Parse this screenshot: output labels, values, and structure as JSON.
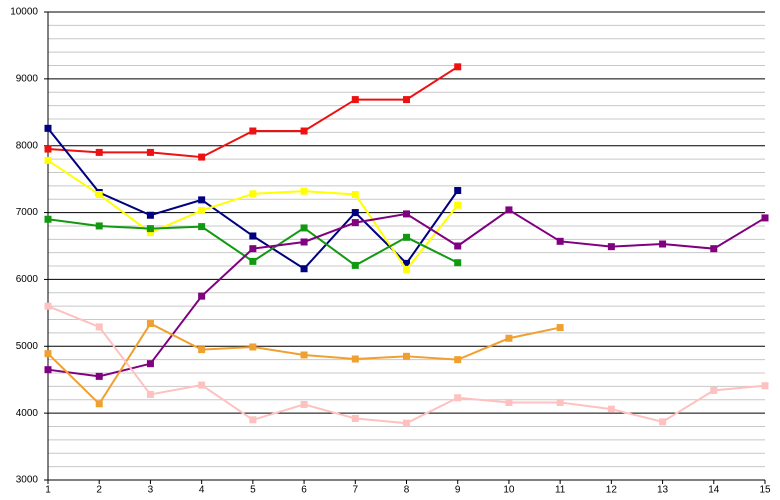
{
  "chart_data": {
    "type": "line",
    "x": [
      1,
      2,
      3,
      4,
      5,
      6,
      7,
      8,
      9,
      10,
      11,
      12,
      13,
      14,
      15
    ],
    "xlim": [
      1,
      15
    ],
    "xticks": [
      1,
      2,
      3,
      4,
      5,
      6,
      7,
      8,
      9,
      10,
      11,
      12,
      13,
      14,
      15
    ],
    "ylim": [
      3000,
      10000
    ],
    "yticks": [
      3000,
      4000,
      5000,
      6000,
      7000,
      8000,
      9000,
      10000
    ],
    "yminorticks": [
      3200,
      3400,
      3600,
      3800,
      4200,
      4400,
      4600,
      4800,
      5200,
      5400,
      5600,
      5800,
      6200,
      6400,
      6600,
      6800,
      7200,
      7400,
      7600,
      7800,
      8200,
      8400,
      8600,
      8800,
      9200,
      9400,
      9600,
      9800
    ],
    "grid": true,
    "series": [
      {
        "color": "#ee1111",
        "values": [
          7950,
          7900,
          7900,
          7830,
          8220,
          8220,
          8690,
          8690,
          9180,
          null,
          null,
          null,
          null,
          null,
          null
        ]
      },
      {
        "color": "#000080",
        "values": [
          8260,
          7300,
          6960,
          7190,
          6650,
          6160,
          7000,
          6240,
          7330,
          null,
          null,
          null,
          null,
          null,
          null
        ]
      },
      {
        "color": "#ffff00",
        "values": [
          7780,
          7270,
          6700,
          7030,
          7280,
          7320,
          7270,
          6150,
          7110,
          null,
          null,
          null,
          null,
          null,
          null
        ]
      },
      {
        "color": "#119911",
        "values": [
          6900,
          6800,
          6760,
          6790,
          6270,
          6770,
          6210,
          6630,
          6250,
          null,
          null,
          null,
          null,
          null,
          null
        ]
      },
      {
        "color": "#800080",
        "values": [
          4650,
          4550,
          4740,
          5750,
          6460,
          6560,
          6850,
          6980,
          6500,
          7040,
          6570,
          6490,
          6530,
          6460,
          6920
        ]
      },
      {
        "color": "#f0a030",
        "values": [
          4890,
          4140,
          5340,
          4950,
          4990,
          4870,
          4810,
          4850,
          4800,
          5120,
          5280,
          null,
          null,
          null,
          null
        ]
      },
      {
        "color": "#ffc0c0",
        "values": [
          5600,
          5290,
          4280,
          4420,
          3900,
          4130,
          3920,
          3850,
          4230,
          4160,
          4160,
          4060,
          3870,
          4340,
          4410
        ]
      }
    ]
  }
}
